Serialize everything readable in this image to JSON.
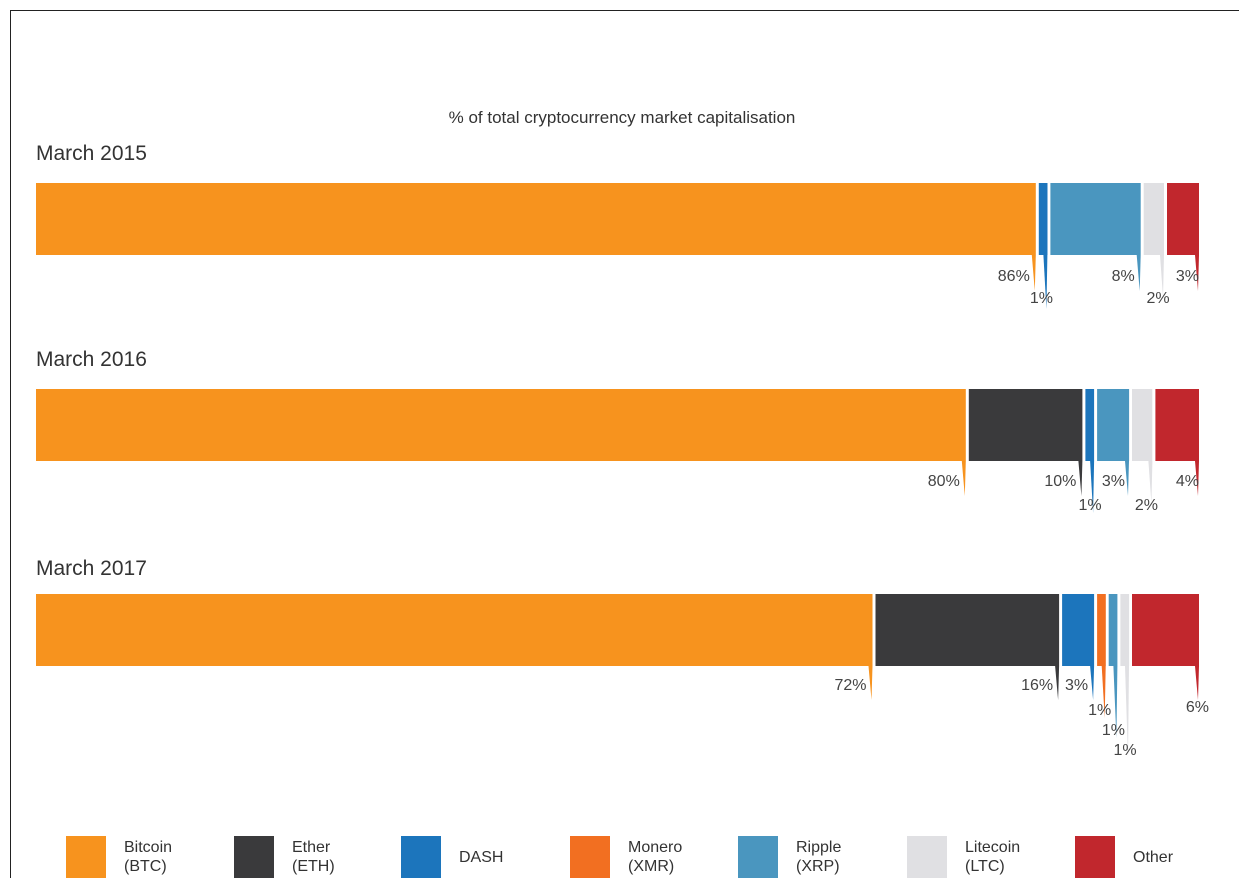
{
  "chart_data": {
    "type": "bar",
    "stacked": true,
    "orientation": "horizontal",
    "title": "% of total cryptocurrency market capitalisation",
    "unit": "%",
    "categories": [
      "March 2015",
      "March 2016",
      "March 2017"
    ],
    "series": [
      {
        "name": "Bitcoin (BTC)",
        "color": "#F7931E",
        "values": [
          86,
          80,
          72
        ],
        "labels": [
          "86%",
          "80%",
          "72%"
        ]
      },
      {
        "name": "Ether (ETH)",
        "color": "#3A3A3C",
        "values": [
          0,
          10,
          16
        ],
        "labels": [
          "",
          "10%",
          "16%"
        ]
      },
      {
        "name": "DASH",
        "color": "#1C75BC",
        "values": [
          1,
          1,
          3
        ],
        "labels": [
          "1%",
          "1%",
          "3%"
        ]
      },
      {
        "name": "Monero (XMR)",
        "color": "#F26F21",
        "values": [
          0,
          0,
          1
        ],
        "labels": [
          "",
          "",
          "1%"
        ]
      },
      {
        "name": "Ripple (XRP)",
        "color": "#4A96BF",
        "values": [
          8,
          3,
          1
        ],
        "labels": [
          "8%",
          "3%",
          "1%"
        ]
      },
      {
        "name": "Litecoin (LTC)",
        "color": "#E0E0E3",
        "values": [
          2,
          2,
          1
        ],
        "labels": [
          "2%",
          "2%",
          "1%"
        ]
      },
      {
        "name": "Other",
        "color": "#C1272D",
        "values": [
          3,
          4,
          6
        ],
        "labels": [
          "3%",
          "4%",
          "6%"
        ]
      }
    ],
    "legend": {
      "position": "bottom",
      "items": [
        {
          "label": "Bitcoin\n(BTC)",
          "color": "#F7931E"
        },
        {
          "label": "Ether\n(ETH)",
          "color": "#3A3A3C"
        },
        {
          "label": "DASH",
          "color": "#1C75BC"
        },
        {
          "label": "Monero\n(XMR)",
          "color": "#F26F21"
        },
        {
          "label": "Ripple\n(XRP)",
          "color": "#4A96BF"
        },
        {
          "label": "Litecoin\n(LTC)",
          "color": "#E0E0E3"
        },
        {
          "label": "Other",
          "color": "#C1272D"
        }
      ]
    }
  }
}
